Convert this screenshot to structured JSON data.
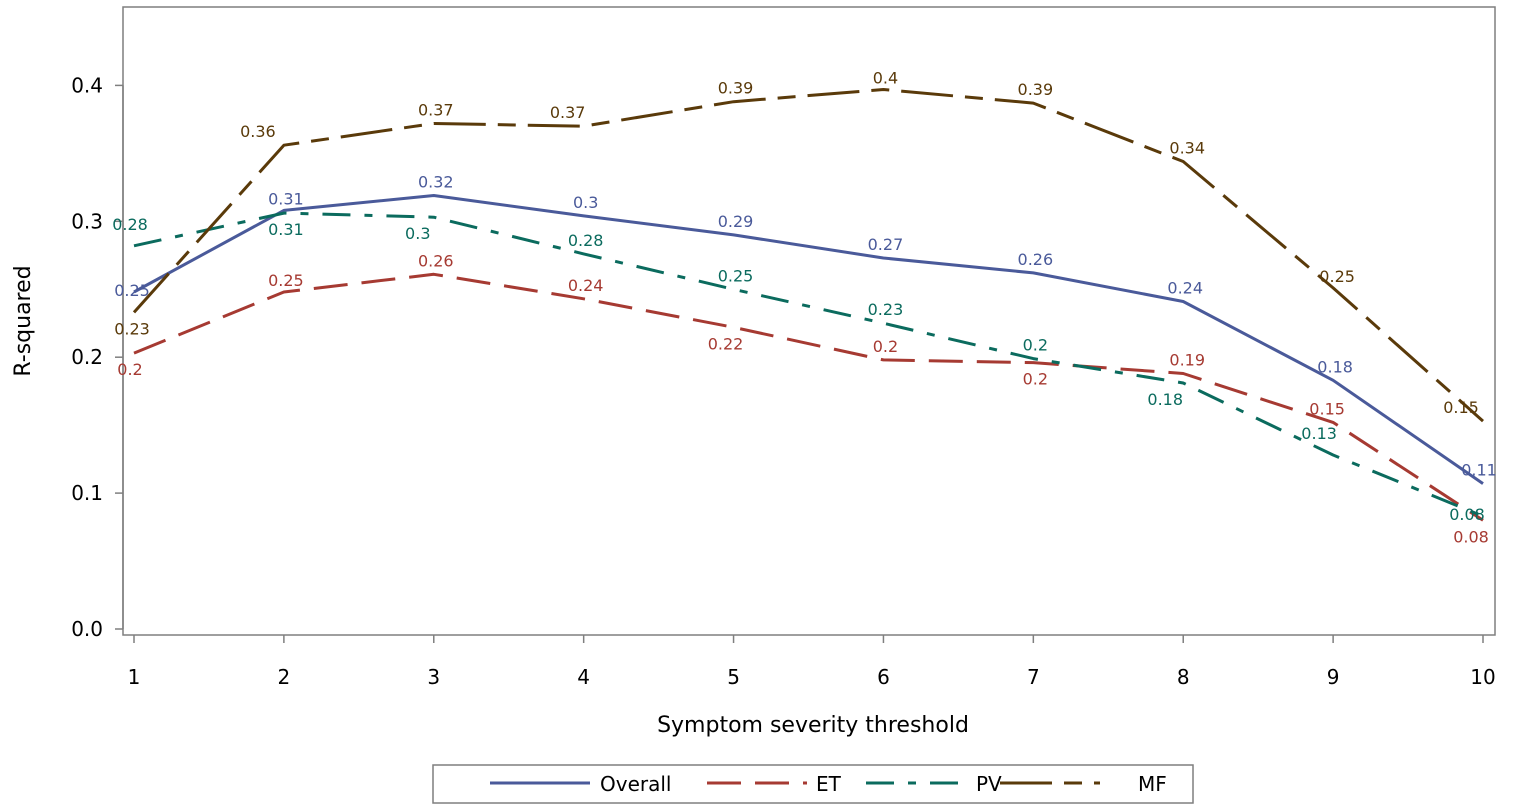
{
  "chart_data": {
    "type": "line",
    "title": "",
    "xlabel": "Symptom severity threshold",
    "ylabel": "R-squared",
    "x": [
      1,
      2,
      3,
      4,
      5,
      6,
      7,
      8,
      9,
      10
    ],
    "xlim": [
      1,
      10
    ],
    "ylim": [
      0,
      0.45
    ],
    "xticks": [
      "1",
      "2",
      "3",
      "4",
      "5",
      "6",
      "7",
      "8",
      "9",
      "10"
    ],
    "yticks": [
      "0.0",
      "0.1",
      "0.2",
      "0.3",
      "0.4"
    ],
    "grid": false,
    "legend_position": "bottom",
    "series": [
      {
        "name": "Overall",
        "color": "#4a5a9a",
        "dash": "solid",
        "values": [
          0.248,
          0.308,
          0.319,
          0.304,
          0.29,
          0.273,
          0.262,
          0.241,
          0.183,
          0.107
        ],
        "labels": [
          "0.25",
          "0.31",
          "0.32",
          "0.3",
          "0.29",
          "0.27",
          "0.26",
          "0.24",
          "0.18",
          "0.11"
        ]
      },
      {
        "name": "ET",
        "color": "#a63a32",
        "dash": "long-dash",
        "values": [
          0.203,
          0.248,
          0.261,
          0.243,
          0.222,
          0.198,
          0.196,
          0.188,
          0.152,
          0.08
        ],
        "labels": [
          "0.2",
          "0.25",
          "0.26",
          "0.24",
          "0.22",
          "0.2",
          "0.2",
          "0.19",
          "0.15",
          "0.08"
        ]
      },
      {
        "name": "PV",
        "color": "#0b6b5e",
        "dash": "dash-dot",
        "values": [
          0.282,
          0.306,
          0.303,
          0.276,
          0.25,
          0.225,
          0.199,
          0.181,
          0.128,
          0.083
        ],
        "labels": [
          "0.28",
          "0.31",
          "0.3",
          "0.28",
          "0.25",
          "0.23",
          "0.2",
          "0.18",
          "0.13",
          "0.08"
        ]
      },
      {
        "name": "MF",
        "color": "#5a3a0a",
        "dash": "long-dash-short",
        "values": [
          0.233,
          0.356,
          0.372,
          0.37,
          0.388,
          0.397,
          0.387,
          0.344,
          0.251,
          0.153
        ],
        "labels": [
          "0.23",
          "0.36",
          "0.37",
          "0.37",
          "0.39",
          "0.4",
          "0.39",
          "0.34",
          "0.25",
          "0.15"
        ]
      }
    ]
  }
}
